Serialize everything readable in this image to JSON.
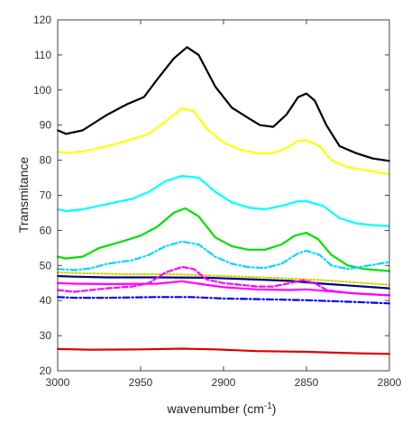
{
  "chart_data": {
    "type": "line",
    "xlabel_main": "wavenumber (cm",
    "xlabel_sup": "-1",
    "xlabel_close": ")",
    "ylabel": "Transmitance",
    "xlim": [
      3000,
      2800
    ],
    "ylim": [
      20,
      120
    ],
    "x_reversed": true,
    "grid": false,
    "xticks": [
      3000,
      2950,
      2900,
      2850,
      2800
    ],
    "yticks": [
      20,
      30,
      40,
      50,
      60,
      70,
      80,
      90,
      100,
      110,
      120
    ],
    "series": [
      {
        "color": "#000000",
        "dash": "solid",
        "points": [
          [
            3000,
            88.5
          ],
          [
            2995,
            87.5
          ],
          [
            2985,
            88.5
          ],
          [
            2970,
            93
          ],
          [
            2958,
            96
          ],
          [
            2948,
            98
          ],
          [
            2940,
            103
          ],
          [
            2930,
            109
          ],
          [
            2922,
            112.2
          ],
          [
            2915,
            110
          ],
          [
            2905,
            101
          ],
          [
            2895,
            95
          ],
          [
            2885,
            92
          ],
          [
            2878,
            90
          ],
          [
            2870,
            89.5
          ],
          [
            2862,
            93
          ],
          [
            2855,
            98
          ],
          [
            2850,
            99
          ],
          [
            2845,
            97
          ],
          [
            2838,
            90
          ],
          [
            2830,
            84
          ],
          [
            2820,
            82
          ],
          [
            2810,
            80.5
          ],
          [
            2800,
            79.8
          ]
        ]
      },
      {
        "color": "#ffff00",
        "dash": "solid",
        "points": [
          [
            3000,
            82.5
          ],
          [
            2995,
            82
          ],
          [
            2985,
            82.5
          ],
          [
            2970,
            84
          ],
          [
            2955,
            86
          ],
          [
            2945,
            87.5
          ],
          [
            2935,
            91
          ],
          [
            2925,
            94.8
          ],
          [
            2918,
            94
          ],
          [
            2910,
            89
          ],
          [
            2900,
            85
          ],
          [
            2890,
            83
          ],
          [
            2880,
            82
          ],
          [
            2870,
            82
          ],
          [
            2862,
            83.5
          ],
          [
            2855,
            85.5
          ],
          [
            2850,
            85.7
          ],
          [
            2842,
            84
          ],
          [
            2835,
            80
          ],
          [
            2825,
            78
          ],
          [
            2810,
            76.8
          ],
          [
            2800,
            76
          ]
        ]
      },
      {
        "color": "#00ffff",
        "dash": "solid",
        "points": [
          [
            3000,
            66
          ],
          [
            2995,
            65.5
          ],
          [
            2985,
            66
          ],
          [
            2970,
            67.5
          ],
          [
            2955,
            69
          ],
          [
            2945,
            71
          ],
          [
            2935,
            74
          ],
          [
            2925,
            75.5
          ],
          [
            2915,
            75
          ],
          [
            2905,
            71
          ],
          [
            2895,
            68
          ],
          [
            2885,
            66.5
          ],
          [
            2875,
            66
          ],
          [
            2865,
            67
          ],
          [
            2855,
            68.3
          ],
          [
            2850,
            68.3
          ],
          [
            2840,
            67
          ],
          [
            2830,
            63.5
          ],
          [
            2820,
            62
          ],
          [
            2810,
            61.5
          ],
          [
            2800,
            61.2
          ]
        ]
      },
      {
        "color": "#00e000",
        "dash": "solid",
        "points": [
          [
            3000,
            52.5
          ],
          [
            2995,
            52
          ],
          [
            2985,
            52.5
          ],
          [
            2975,
            55
          ],
          [
            2960,
            57
          ],
          [
            2950,
            58.5
          ],
          [
            2940,
            61
          ],
          [
            2930,
            65
          ],
          [
            2923,
            66.3
          ],
          [
            2915,
            64
          ],
          [
            2905,
            58
          ],
          [
            2895,
            55.5
          ],
          [
            2885,
            54.5
          ],
          [
            2875,
            54.5
          ],
          [
            2865,
            56
          ],
          [
            2857,
            58.5
          ],
          [
            2850,
            59.3
          ],
          [
            2843,
            57.5
          ],
          [
            2835,
            53
          ],
          [
            2825,
            50
          ],
          [
            2815,
            49
          ],
          [
            2800,
            48.4
          ]
        ]
      },
      {
        "color": "#00d8ff",
        "dash": "dashdot",
        "points": [
          [
            3000,
            49
          ],
          [
            2990,
            48.7
          ],
          [
            2980,
            49.2
          ],
          [
            2970,
            50.5
          ],
          [
            2955,
            51.5
          ],
          [
            2945,
            53
          ],
          [
            2935,
            55.5
          ],
          [
            2925,
            56.8
          ],
          [
            2915,
            56
          ],
          [
            2905,
            52.5
          ],
          [
            2895,
            50.5
          ],
          [
            2885,
            49.5
          ],
          [
            2875,
            49.3
          ],
          [
            2865,
            50.5
          ],
          [
            2855,
            53.5
          ],
          [
            2850,
            54.2
          ],
          [
            2842,
            53
          ],
          [
            2835,
            50
          ],
          [
            2825,
            49
          ],
          [
            2815,
            49.8
          ],
          [
            2800,
            51
          ]
        ]
      },
      {
        "color": "#d4d400",
        "dash": "dotted",
        "points": [
          [
            3000,
            48
          ],
          [
            2960,
            47.5
          ],
          [
            2930,
            47.5
          ],
          [
            2900,
            47
          ],
          [
            2870,
            46.5
          ],
          [
            2840,
            45.8
          ],
          [
            2800,
            44.5
          ]
        ]
      },
      {
        "color": "#00008b",
        "dash": "solid",
        "points": [
          [
            3000,
            47
          ],
          [
            2990,
            46.8
          ],
          [
            2970,
            46.6
          ],
          [
            2940,
            46.6
          ],
          [
            2910,
            46.5
          ],
          [
            2880,
            46
          ],
          [
            2860,
            45.6
          ],
          [
            2840,
            44.8
          ],
          [
            2800,
            43.5
          ]
        ]
      },
      {
        "color": "#ff00ff",
        "dash": "dashed",
        "points": [
          [
            3000,
            43
          ],
          [
            2990,
            42.5
          ],
          [
            2980,
            43
          ],
          [
            2970,
            43.5
          ],
          [
            2955,
            44
          ],
          [
            2945,
            45
          ],
          [
            2935,
            48
          ],
          [
            2925,
            49.6
          ],
          [
            2918,
            49
          ],
          [
            2910,
            46
          ],
          [
            2900,
            45
          ],
          [
            2890,
            44.5
          ],
          [
            2880,
            44
          ],
          [
            2870,
            44
          ],
          [
            2860,
            45
          ],
          [
            2852,
            45.8
          ],
          [
            2845,
            45
          ],
          [
            2838,
            43
          ],
          [
            2830,
            42.5
          ],
          [
            2820,
            42
          ],
          [
            2800,
            41.5
          ]
        ]
      },
      {
        "color": "#ff00ff",
        "dash": "solid",
        "points": [
          [
            3000,
            45
          ],
          [
            2990,
            44.8
          ],
          [
            2970,
            44.7
          ],
          [
            2940,
            44.8
          ],
          [
            2925,
            45.5
          ],
          [
            2915,
            44.8
          ],
          [
            2900,
            43.8
          ],
          [
            2880,
            43.2
          ],
          [
            2860,
            43
          ],
          [
            2850,
            43.2
          ],
          [
            2840,
            42.8
          ],
          [
            2820,
            42
          ],
          [
            2800,
            41.5
          ]
        ]
      },
      {
        "color": "#0000ff",
        "dash": "dashdot",
        "points": [
          [
            3000,
            41
          ],
          [
            2990,
            40.8
          ],
          [
            2970,
            40.8
          ],
          [
            2940,
            41
          ],
          [
            2920,
            41
          ],
          [
            2900,
            40.6
          ],
          [
            2880,
            40.4
          ],
          [
            2850,
            40.1
          ],
          [
            2820,
            39.6
          ],
          [
            2800,
            39.2
          ]
        ]
      },
      {
        "color": "#dd0000",
        "dash": "solid",
        "points": [
          [
            3000,
            26.2
          ],
          [
            2980,
            26
          ],
          [
            2950,
            26.1
          ],
          [
            2925,
            26.3
          ],
          [
            2905,
            26.1
          ],
          [
            2880,
            25.6
          ],
          [
            2850,
            25.4
          ],
          [
            2820,
            25
          ],
          [
            2800,
            24.8
          ]
        ]
      }
    ]
  }
}
